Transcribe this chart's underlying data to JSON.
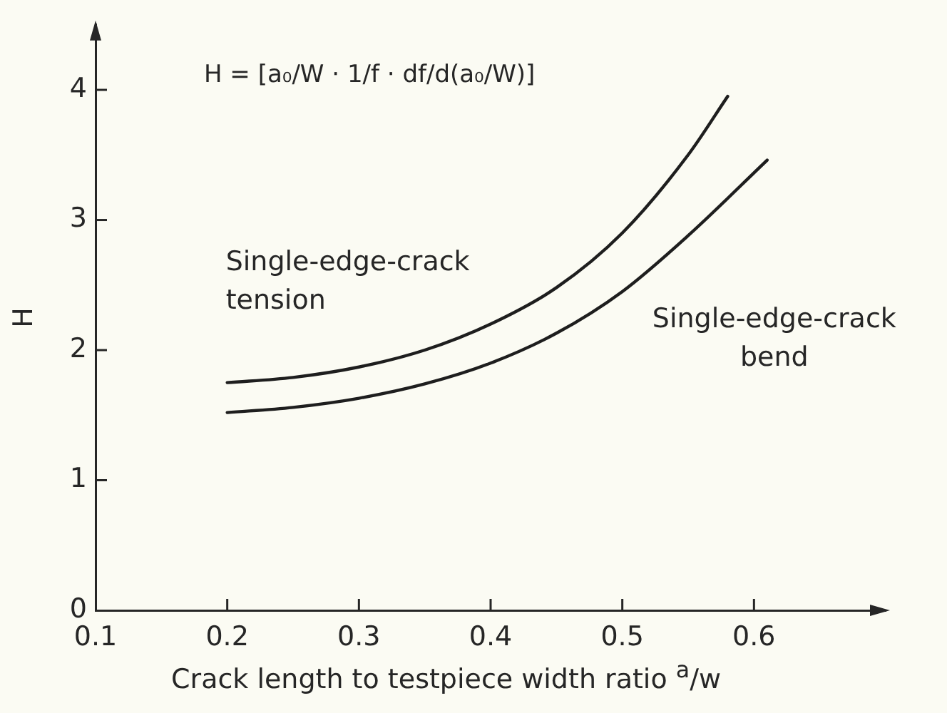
{
  "chart_data": {
    "type": "line",
    "xlabel": "Crack length to testpiece width ratio $^{a}$/w",
    "ylabel": "H",
    "annotations": [
      "H = [a₀/W · 1/f · df/d(a₀/W)]"
    ],
    "series": [
      {
        "name": "Single-edge-crack tension",
        "color": "#1e1e1e",
        "x": [
          0.2,
          0.25,
          0.3,
          0.35,
          0.4,
          0.45,
          0.5,
          0.55,
          0.58
        ],
        "values": [
          1.75,
          1.79,
          1.87,
          2.0,
          2.2,
          2.48,
          2.9,
          3.5,
          3.95
        ]
      },
      {
        "name": "Single-edge-crack bend",
        "color": "#1e1e1e",
        "x": [
          0.2,
          0.25,
          0.3,
          0.35,
          0.4,
          0.45,
          0.5,
          0.55,
          0.61
        ],
        "values": [
          1.52,
          1.56,
          1.63,
          1.74,
          1.9,
          2.13,
          2.45,
          2.88,
          3.46
        ]
      }
    ],
    "xlim": [
      0.1,
      0.7
    ],
    "xticks": [
      0.1,
      0.2,
      0.3,
      0.4,
      0.5,
      0.6
    ],
    "ylim": [
      0,
      4.5
    ],
    "yticks": [
      0,
      1,
      2,
      3,
      4
    ],
    "grid": false,
    "legend": false,
    "marker": "none",
    "line_style": "solid"
  }
}
